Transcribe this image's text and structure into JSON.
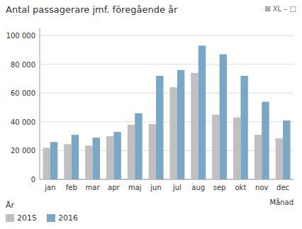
{
  "chart_data": {
    "type": "bar",
    "title": "Antal passagerare jmf. föregående år",
    "xlabel": "Månad",
    "legend_title": "År",
    "annotations": [
      "⊠ XL  –  □"
    ],
    "categories": [
      "jan",
      "feb",
      "mar",
      "apr",
      "maj",
      "jun",
      "jul",
      "aug",
      "sep",
      "okt",
      "nov",
      "dec"
    ],
    "series": [
      {
        "name": "2015",
        "color": "#c0c0c0",
        "values": [
          22000,
          24500,
          23500,
          30000,
          38000,
          38500,
          64000,
          74000,
          45000,
          43000,
          31000,
          28500
        ]
      },
      {
        "name": "2016",
        "color": "#7ba7c7",
        "values": [
          26000,
          31000,
          29000,
          33000,
          46000,
          72000,
          76000,
          93000,
          87000,
          72000,
          54000,
          41000
        ]
      }
    ],
    "ylim": [
      0,
      105000
    ],
    "yticks": [
      0,
      {
        "value": 20000,
        "label": "20 000"
      },
      {
        "value": 40000,
        "label": "40 000"
      },
      {
        "value": 60000,
        "label": "60 000"
      },
      {
        "value": 80000,
        "label": "80 000"
      },
      {
        "value": 100000,
        "label": "100 000"
      }
    ],
    "grid": true,
    "legend": "bottom"
  }
}
